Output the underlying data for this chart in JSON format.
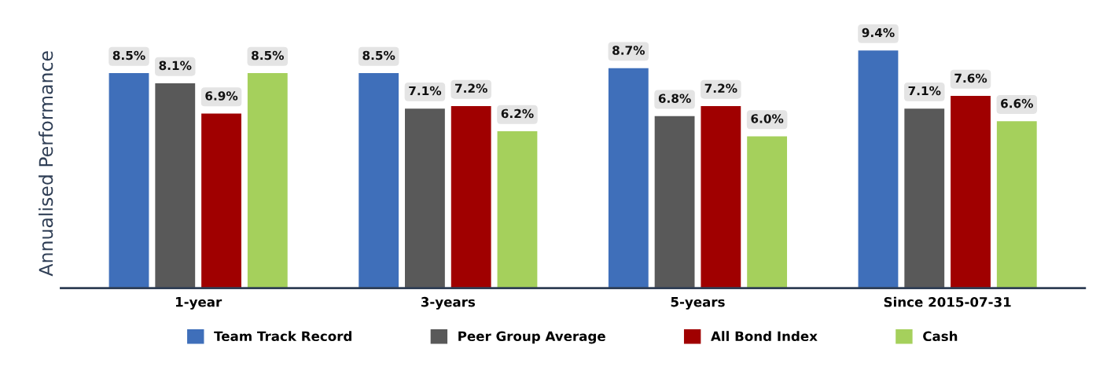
{
  "chart_data": {
    "type": "bar",
    "ylabel": "Annualised Performance",
    "categories": [
      "1-year",
      "3-years",
      "5-years",
      "Since 2015-07-31"
    ],
    "series": [
      {
        "name": "Team Track Record",
        "color": "#3f6fba",
        "values": [
          8.5,
          8.5,
          8.7,
          9.4
        ],
        "value_labels": [
          "8.5%",
          "8.5%",
          "8.7%",
          "9.4%"
        ]
      },
      {
        "name": "Peer Group Average",
        "color": "#595959",
        "values": [
          8.1,
          7.1,
          6.8,
          7.1
        ],
        "value_labels": [
          "8.1%",
          "7.1%",
          "6.8%",
          "7.1%"
        ]
      },
      {
        "name": "All Bond Index",
        "color": "#a00000",
        "values": [
          6.9,
          7.2,
          7.2,
          7.6
        ],
        "value_labels": [
          "6.9%",
          "7.2%",
          "7.2%",
          "7.6%"
        ]
      },
      {
        "name": "Cash",
        "color": "#a5d05c",
        "values": [
          8.5,
          6.2,
          6.0,
          6.6
        ],
        "value_labels": [
          "8.5%",
          "6.2%",
          "6.0%",
          "6.6%"
        ]
      }
    ],
    "tick_labels": "x",
    "legend": "bottom"
  }
}
